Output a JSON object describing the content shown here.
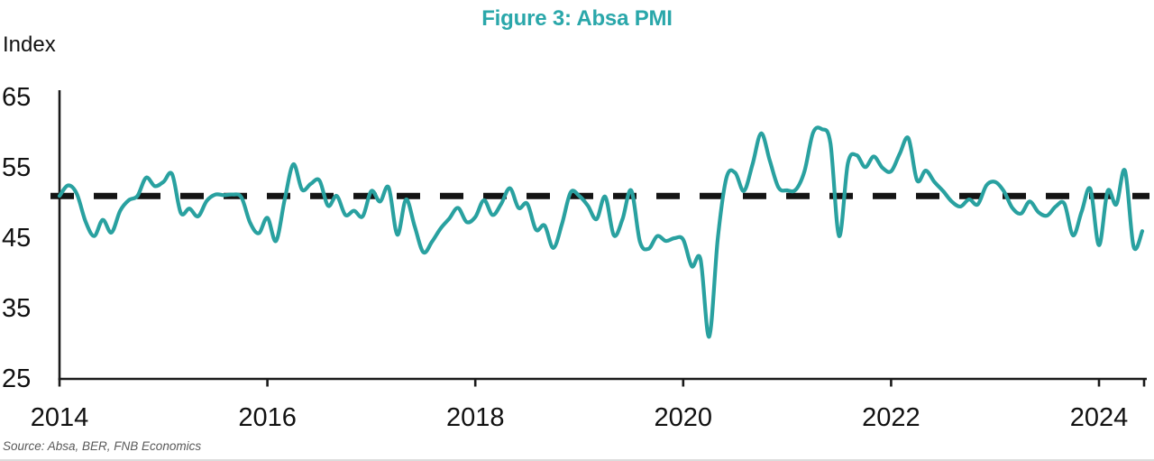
{
  "figure": {
    "title": "Figure 3: Absa PMI",
    "y_axis_label": "Index",
    "source": "Source: Absa, BER, FNB Economics"
  },
  "colors": {
    "title": "#2AA7AA",
    "line": "#29A1A0",
    "axis": "#1A1A1A",
    "tick_label": "#111111",
    "reference_line": "#141414",
    "source_text": "#595959",
    "bottom_rule": "#DCDCDC"
  },
  "chart_data": {
    "type": "line",
    "title": "Figure 3: Absa PMI",
    "xlabel": "",
    "ylabel": "Index",
    "ylim": [
      25,
      65
    ],
    "y_ticks": [
      65,
      55,
      45,
      35,
      25
    ],
    "x_ticks": [
      2014,
      2016,
      2018,
      2020,
      2022,
      2024
    ],
    "grid": false,
    "legend_position": "none",
    "reference_line": {
      "style": "dashed",
      "value": 51
    },
    "series": [
      {
        "name": "Absa PMI (index)",
        "start": "2014-01",
        "end": "2024-06",
        "frequency": "monthly",
        "values": [
          51.0,
          52.5,
          51.3,
          47.4,
          45.3,
          47.6,
          45.8,
          48.9,
          50.4,
          51.0,
          53.6,
          52.4,
          53.0,
          54.1,
          48.6,
          49.2,
          48.1,
          50.3,
          51.2,
          51.1,
          51.2,
          50.8,
          47.2,
          45.7,
          47.9,
          44.6,
          50.5,
          55.5,
          51.9,
          52.7,
          53.2,
          49.6,
          51.0,
          48.3,
          48.9,
          48.1,
          51.7,
          50.2,
          52.2,
          45.5,
          50.5,
          46.7,
          43.0,
          44.5,
          46.4,
          47.8,
          49.3,
          47.3,
          48.0,
          50.4,
          48.3,
          49.9,
          52.1,
          49.3,
          49.9,
          46.2,
          46.8,
          43.6,
          47.0,
          51.5,
          51.0,
          49.6,
          47.7,
          50.9,
          45.4,
          47.7,
          51.8,
          44.5,
          43.5,
          45.3,
          44.6,
          45.0,
          44.8,
          41.0,
          42.0,
          31.0,
          45.0,
          53.6,
          54.3,
          51.7,
          55.5,
          59.9,
          56.0,
          52.2,
          51.8,
          51.9,
          54.5,
          60.0,
          60.5,
          58.5,
          45.3,
          55.6,
          56.8,
          55.1,
          56.6,
          55.0,
          54.5,
          57.0,
          59.2,
          53.2,
          54.6,
          53.0,
          51.7,
          50.2,
          49.5,
          50.5,
          49.8,
          52.5,
          53.0,
          51.7,
          49.3,
          48.5,
          50.2,
          48.7,
          48.2,
          49.5,
          49.9,
          45.4,
          48.8,
          52.0,
          44.0,
          51.7,
          49.8,
          54.6,
          43.8,
          46.0
        ]
      }
    ]
  }
}
